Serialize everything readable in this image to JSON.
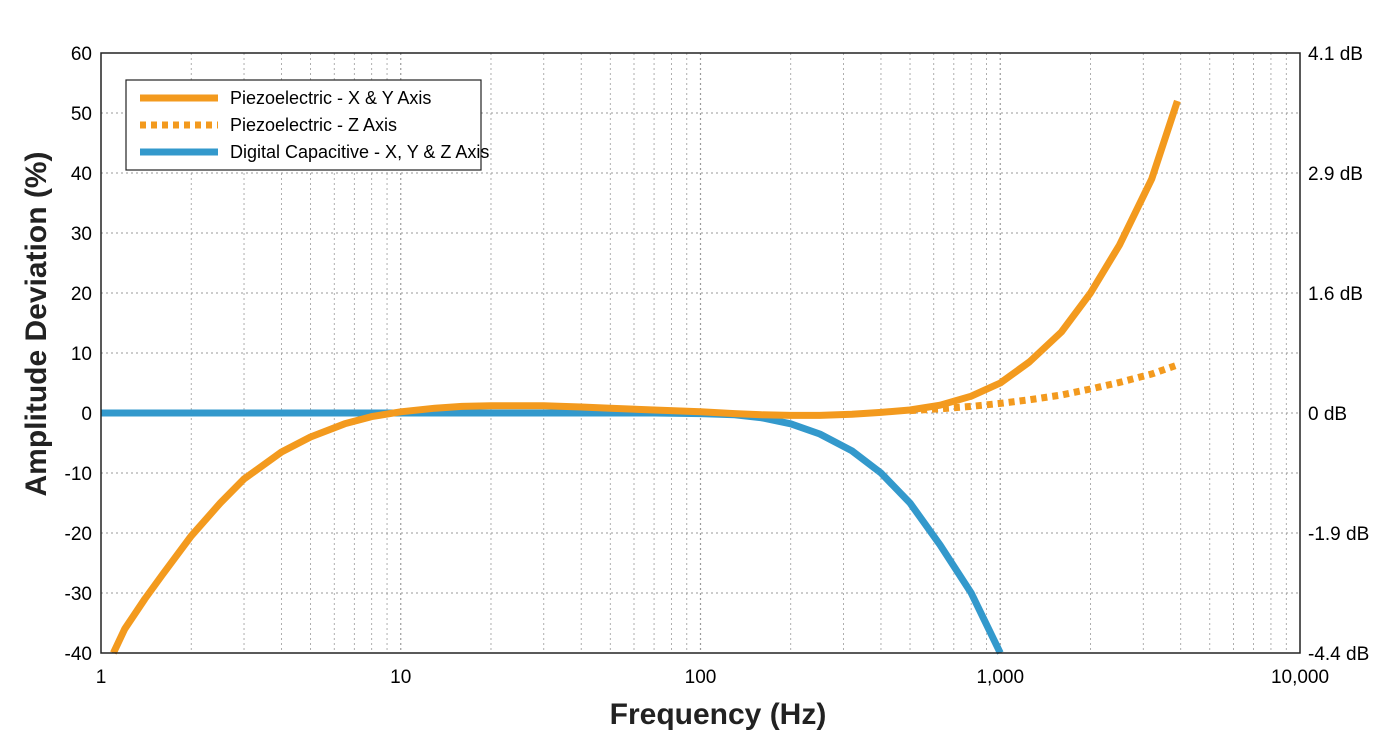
{
  "chart_data": {
    "type": "line",
    "xscale": "log",
    "xlabel": "Frequency (Hz)",
    "ylabel": "Amplitude Deviation (%)",
    "xlim": [
      1,
      10000
    ],
    "ylim": [
      -40,
      60
    ],
    "grid": true,
    "legend_position": "top-left",
    "x_tick_labels": [
      "1",
      "10",
      "100",
      "1,000",
      "10,000"
    ],
    "y_ticks": [
      -40,
      -30,
      -20,
      -10,
      0,
      10,
      20,
      30,
      40,
      50,
      60
    ],
    "y_tick_labels": [
      "-40",
      "-30",
      "-20",
      "-10",
      "0",
      "10",
      "20",
      "30",
      "40",
      "50",
      "60"
    ],
    "y2_ticks": [
      -40,
      -20,
      0,
      20,
      40,
      60
    ],
    "y2_tick_labels": [
      "-4.4 dB",
      "-1.9 dB",
      "0 dB",
      "1.6 dB",
      "2.9 dB",
      "4.1 dB"
    ],
    "series": [
      {
        "name": "Piezoelectric - X & Y Axis",
        "color": "#F39A1E",
        "style": "solid",
        "x": [
          1.1,
          1.2,
          1.4,
          1.6,
          2,
          2.5,
          3,
          4,
          5,
          6.5,
          8,
          10,
          13,
          16,
          20,
          25,
          30,
          40,
          50,
          70,
          100,
          130,
          160,
          200,
          250,
          320,
          400,
          500,
          630,
          800,
          1000,
          1250,
          1600,
          2000,
          2500,
          3200,
          3900
        ],
        "y": [
          -40,
          -36,
          -31,
          -27,
          -20.5,
          -15,
          -11,
          -6.5,
          -4,
          -1.8,
          -0.6,
          0.2,
          0.8,
          1.1,
          1.2,
          1.2,
          1.2,
          1.0,
          0.8,
          0.5,
          0.2,
          -0.1,
          -0.3,
          -0.4,
          -0.4,
          -0.2,
          0.1,
          0.5,
          1.3,
          2.8,
          5,
          8.5,
          13.5,
          20,
          28,
          39,
          52
        ]
      },
      {
        "name": "Piezoelectric - Z Axis",
        "color": "#F39A1E",
        "style": "dotted",
        "x": [
          500,
          630,
          800,
          1000,
          1250,
          1600,
          2000,
          2500,
          3200,
          3900
        ],
        "y": [
          0.4,
          0.7,
          1.1,
          1.6,
          2.2,
          3.0,
          4.0,
          5.1,
          6.5,
          8
        ]
      },
      {
        "name": "Digital Capacitive - X, Y & Z Axis",
        "color": "#3399CC",
        "style": "solid",
        "x": [
          1,
          3,
          10,
          30,
          70,
          100,
          130,
          160,
          200,
          250,
          320,
          400,
          500,
          630,
          800,
          1000
        ],
        "y": [
          0,
          0,
          0,
          0,
          0,
          -0.1,
          -0.3,
          -0.8,
          -1.8,
          -3.5,
          -6.3,
          -10,
          -15,
          -22,
          -30,
          -40
        ]
      }
    ]
  }
}
